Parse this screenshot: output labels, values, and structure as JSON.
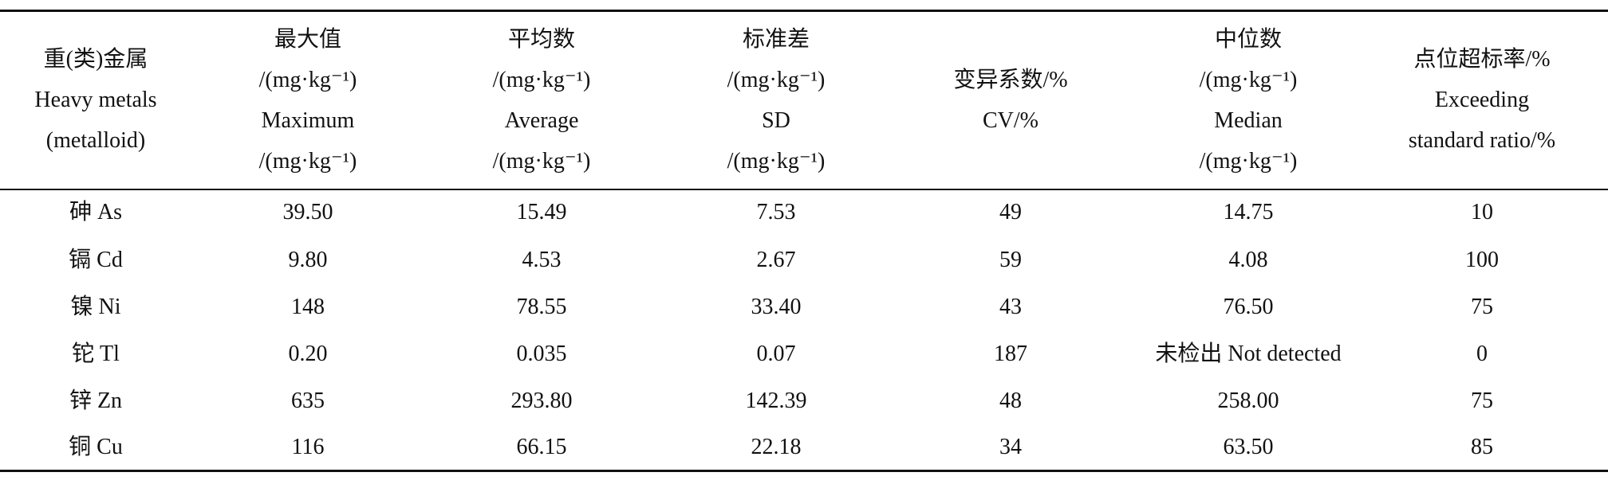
{
  "table": {
    "header": [
      [
        "重(类)金属",
        "Heavy metals",
        "(metalloid)"
      ],
      [
        "最大值",
        "/(mg·kg⁻¹)",
        "Maximum",
        "/(mg·kg⁻¹)"
      ],
      [
        "平均数",
        "/(mg·kg⁻¹)",
        "Average",
        "/(mg·kg⁻¹)"
      ],
      [
        "标准差",
        "/(mg·kg⁻¹)",
        "SD",
        "/(mg·kg⁻¹)"
      ],
      [
        "变异系数/%",
        "CV/%"
      ],
      [
        "中位数",
        "/(mg·kg⁻¹)",
        "Median",
        "/(mg·kg⁻¹)"
      ],
      [
        "点位超标率/%",
        "Exceeding",
        "standard ratio/%"
      ]
    ],
    "rows": [
      [
        "砷 As",
        "39.50",
        "15.49",
        "7.53",
        "49",
        "14.75",
        "10"
      ],
      [
        "镉 Cd",
        "9.80",
        "4.53",
        "2.67",
        "59",
        "4.08",
        "100"
      ],
      [
        "镍 Ni",
        "148",
        "78.55",
        "33.40",
        "43",
        "76.50",
        "75"
      ],
      [
        "铊 Tl",
        "0.20",
        "0.035",
        "0.07",
        "187",
        "未检出 Not detected",
        "0"
      ],
      [
        "锌 Zn",
        "635",
        "293.80",
        "142.39",
        "48",
        "258.00",
        "75"
      ],
      [
        "铜 Cu",
        "116",
        "66.15",
        "22.18",
        "34",
        "63.50",
        "85"
      ]
    ]
  }
}
